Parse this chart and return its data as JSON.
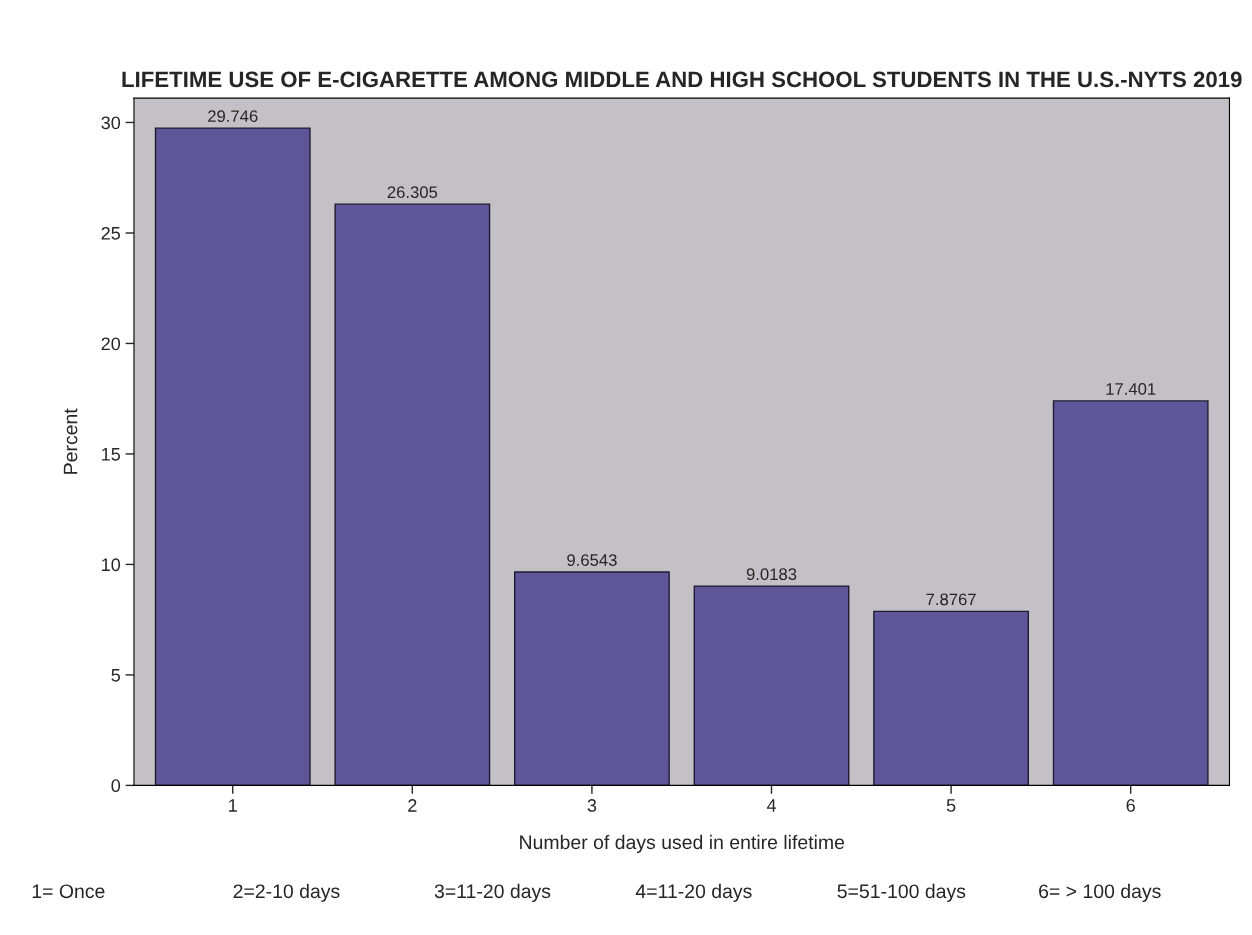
{
  "chart_data": {
    "type": "bar",
    "title": "LIFETIME USE OF E-CIGARETTE AMONG MIDDLE AND HIGH SCHOOL STUDENTS IN THE U.S.-NYTS 2019",
    "xlabel": "Number of days used in entire lifetime",
    "ylabel": "Percent",
    "categories": [
      "1",
      "2",
      "3",
      "4",
      "5",
      "6"
    ],
    "values": [
      29.746,
      26.305,
      9.6543,
      9.0183,
      7.8767,
      17.401
    ],
    "color": "#5e5699",
    "data_labels": true,
    "ylim": [
      0,
      31.1
    ],
    "yticks": [
      0,
      5,
      10,
      15,
      20,
      25,
      30
    ],
    "grid": false,
    "annotations": [
      "1= Once",
      "2=2-10 days",
      "3=11-20 days",
      "4=11-20 days",
      "5=51-100 days",
      "6= > 100 days"
    ]
  }
}
